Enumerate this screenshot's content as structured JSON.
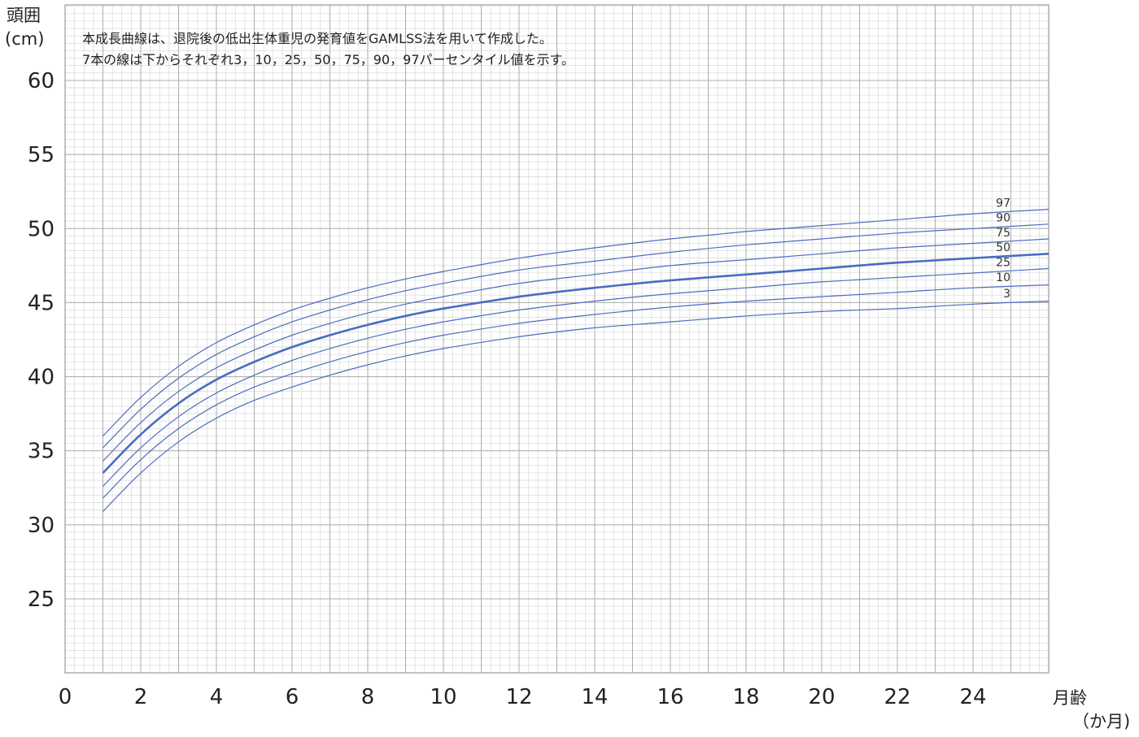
{
  "chart_data": {
    "type": "line",
    "ylabel": "頭囲",
    "yunit": "(cm)",
    "xlabel": "月齢",
    "xunit": "（か月)",
    "notes": [
      "本成長曲線は、退院後の低出生体重児の発育値をGAMLSS法を用いて作成した。",
      "7本の線は下からそれぞれ3，10，25，50，75，90，97パーセンタイル値を示す。"
    ],
    "xlim": [
      0,
      26
    ],
    "ylim": [
      20,
      60
    ],
    "x_ticks": [
      "0",
      "2",
      "4",
      "6",
      "8",
      "10",
      "12",
      "14",
      "16",
      "18",
      "20",
      "22",
      "24"
    ],
    "y_ticks": [
      "25",
      "30",
      "35",
      "40",
      "45",
      "50",
      "55",
      "60"
    ],
    "grid": true,
    "line_color": "#4a6cc0",
    "x": [
      1,
      2,
      3,
      4,
      5,
      6,
      7,
      8,
      9,
      10,
      12,
      14,
      16,
      18,
      20,
      22,
      24,
      26
    ],
    "series": [
      {
        "name": "3",
        "values": [
          30.9,
          33.5,
          35.6,
          37.2,
          38.4,
          39.3,
          40.1,
          40.8,
          41.4,
          41.9,
          42.7,
          43.3,
          43.7,
          44.1,
          44.4,
          44.6,
          44.9,
          45.1
        ]
      },
      {
        "name": "10",
        "values": [
          31.8,
          34.4,
          36.5,
          38.1,
          39.3,
          40.2,
          41.0,
          41.7,
          42.3,
          42.8,
          43.6,
          44.2,
          44.7,
          45.1,
          45.4,
          45.7,
          46.0,
          46.2
        ]
      },
      {
        "name": "25",
        "values": [
          32.6,
          35.2,
          37.3,
          38.9,
          40.1,
          41.1,
          41.9,
          42.6,
          43.2,
          43.7,
          44.5,
          45.1,
          45.6,
          46.0,
          46.4,
          46.7,
          47.0,
          47.3
        ]
      },
      {
        "name": "50",
        "values": [
          33.5,
          36.1,
          38.2,
          39.8,
          41.0,
          42.0,
          42.8,
          43.5,
          44.1,
          44.6,
          45.4,
          46.0,
          46.5,
          46.9,
          47.3,
          47.7,
          48.0,
          48.3
        ]
      },
      {
        "name": "75",
        "values": [
          34.3,
          36.9,
          39.0,
          40.6,
          41.8,
          42.8,
          43.6,
          44.3,
          44.9,
          45.4,
          46.3,
          46.9,
          47.5,
          47.9,
          48.3,
          48.7,
          49.0,
          49.3
        ]
      },
      {
        "name": "90",
        "values": [
          35.2,
          37.8,
          39.9,
          41.5,
          42.7,
          43.7,
          44.5,
          45.2,
          45.8,
          46.3,
          47.2,
          47.8,
          48.4,
          48.9,
          49.3,
          49.7,
          50.0,
          50.3
        ]
      },
      {
        "name": "97",
        "values": [
          36.0,
          38.6,
          40.7,
          42.3,
          43.5,
          44.5,
          45.3,
          46.0,
          46.6,
          47.1,
          48.0,
          48.7,
          49.3,
          49.8,
          50.2,
          50.6,
          51.0,
          51.3
        ]
      }
    ]
  }
}
